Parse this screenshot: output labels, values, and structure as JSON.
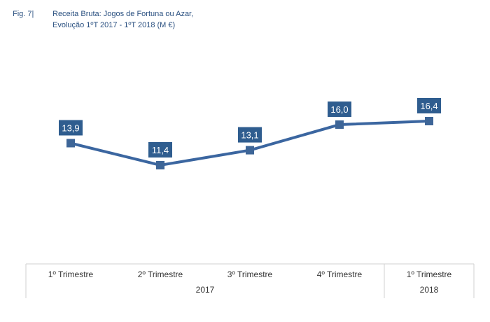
{
  "figure_label": "Fig. 7|",
  "chart_data": {
    "type": "line",
    "title": "Receita Bruta: Jogos de Fortuna ou Azar,",
    "subtitle": "Evolução 1ºT 2017 - 1ºT 2018 (M €)",
    "categories": [
      "1º Trimestre",
      "2º Trimestre",
      "3º Trimestre",
      "4º Trimestre",
      "1º Trimestre"
    ],
    "groups": [
      {
        "label": "2017",
        "span": 4
      },
      {
        "label": "2018",
        "span": 1
      }
    ],
    "values": [
      13.9,
      11.4,
      13.1,
      16.0,
      16.4
    ],
    "data_labels": [
      "13,9",
      "11,4",
      "13,1",
      "16,0",
      "16,4"
    ],
    "xlabel": "",
    "ylabel": "",
    "ylim": [
      3,
      20
    ],
    "grid": false,
    "colors": {
      "line": "#3b66a0",
      "marker": "#3d6597",
      "label_bg": "#2f5d8f"
    }
  }
}
